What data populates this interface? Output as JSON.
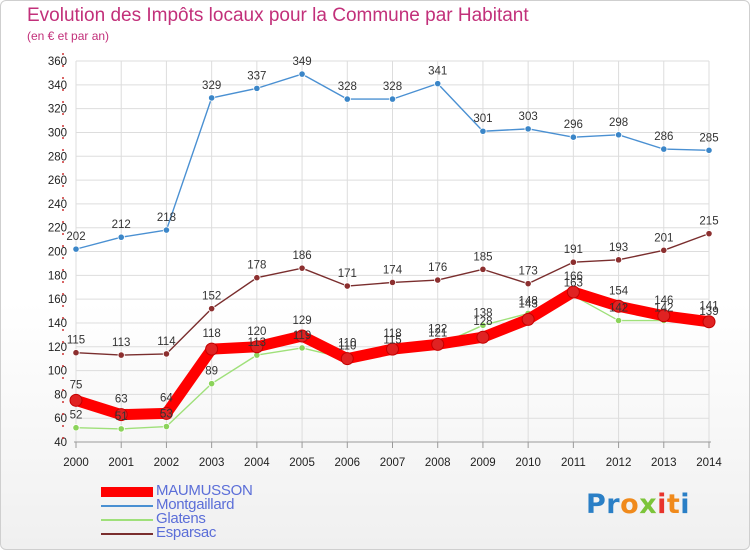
{
  "header": {
    "title": "Evolution des Impôts locaux pour la Commune par Habitant",
    "subtitle": "(en € et par an)"
  },
  "logo": {
    "letters": [
      "P",
      "r",
      "o",
      "x",
      "i",
      "t",
      "i"
    ]
  },
  "colors": {
    "title": "#c2307a",
    "axis_ticks": "#cc3333",
    "grid": "#dddddd",
    "logo": [
      "#2a7fc6",
      "#2a7fc6",
      "#f08a1c",
      "#7cc43a",
      "#e8342c",
      "#f08a1c",
      "#2a7fc6"
    ]
  },
  "chart_data": {
    "type": "line",
    "title": "Evolution des Impôts locaux pour la Commune par Habitant",
    "subtitle": "(en € et par an)",
    "xlabel": "",
    "ylabel": "",
    "x": [
      2000,
      2001,
      2002,
      2003,
      2004,
      2005,
      2006,
      2007,
      2008,
      2009,
      2010,
      2011,
      2012,
      2013,
      2014
    ],
    "ylim": [
      40,
      360
    ],
    "yticks": [
      40,
      60,
      80,
      100,
      120,
      140,
      160,
      180,
      200,
      220,
      240,
      260,
      280,
      300,
      320,
      340,
      360
    ],
    "grid": true,
    "legend_position": "bottom-left",
    "series": [
      {
        "name": "Montgaillard",
        "color": "#4a90d2",
        "marker": "#3b86c8",
        "values": [
          202,
          212,
          218,
          329,
          337,
          349,
          328,
          328,
          341,
          301,
          303,
          296,
          298,
          286,
          285
        ]
      },
      {
        "name": "Esparsac",
        "color": "#7a2e2e",
        "marker": "#8c2f2f",
        "values": [
          115,
          113,
          114,
          152,
          178,
          186,
          171,
          174,
          176,
          185,
          173,
          191,
          193,
          201,
          215
        ]
      },
      {
        "name": "Glatens",
        "color": "#9fe07a",
        "marker": "#8bd35a",
        "values": [
          52,
          51,
          53,
          89,
          113,
          119,
          110,
          115,
          121,
          138,
          148,
          163,
          142,
          142,
          139
        ]
      },
      {
        "name": "MAUMUSSON",
        "color": "#ff0000",
        "marker": "#e02222",
        "values": [
          75,
          63,
          64,
          118,
          120,
          129,
          110,
          118,
          122,
          128,
          143,
          166,
          154,
          146,
          141
        ]
      }
    ],
    "data_labels": [
      {
        "series": "Montgaillard",
        "texts": [
          "202",
          "212",
          "218",
          "329",
          "337",
          "349",
          "328",
          "328",
          "341",
          "301",
          "303",
          "296",
          "298",
          "286",
          "285"
        ]
      },
      {
        "series": "Esparsac",
        "texts": [
          "115",
          "113",
          "114",
          "152",
          "178",
          "186",
          "171",
          "174",
          "176",
          "185",
          "173",
          "191",
          "193",
          "201",
          "215"
        ]
      },
      {
        "series": "Glatens",
        "texts": [
          "52",
          "51",
          "53",
          "89",
          "113",
          "119",
          "110",
          "115",
          "121",
          "138",
          "148",
          "163",
          "142",
          "142",
          "139"
        ]
      },
      {
        "series": "MAUMUSSON",
        "texts": [
          "75",
          "63",
          "64",
          "118",
          "120",
          "129",
          "110",
          "118",
          "122",
          "128",
          "143",
          "166",
          "154",
          "146",
          "141"
        ]
      }
    ],
    "legend": [
      {
        "label": "MAUMUSSON",
        "color": "#ff0000",
        "label_color": "#5b6ed8"
      },
      {
        "label": "Montgaillard",
        "color": "#4a90d2",
        "label_color": "#5b6ed8"
      },
      {
        "label": "Glatens",
        "color": "#9fe07a",
        "label_color": "#5b6ed8"
      },
      {
        "label": "Esparsac",
        "color": "#7a2e2e",
        "label_color": "#5b6ed8"
      }
    ]
  }
}
